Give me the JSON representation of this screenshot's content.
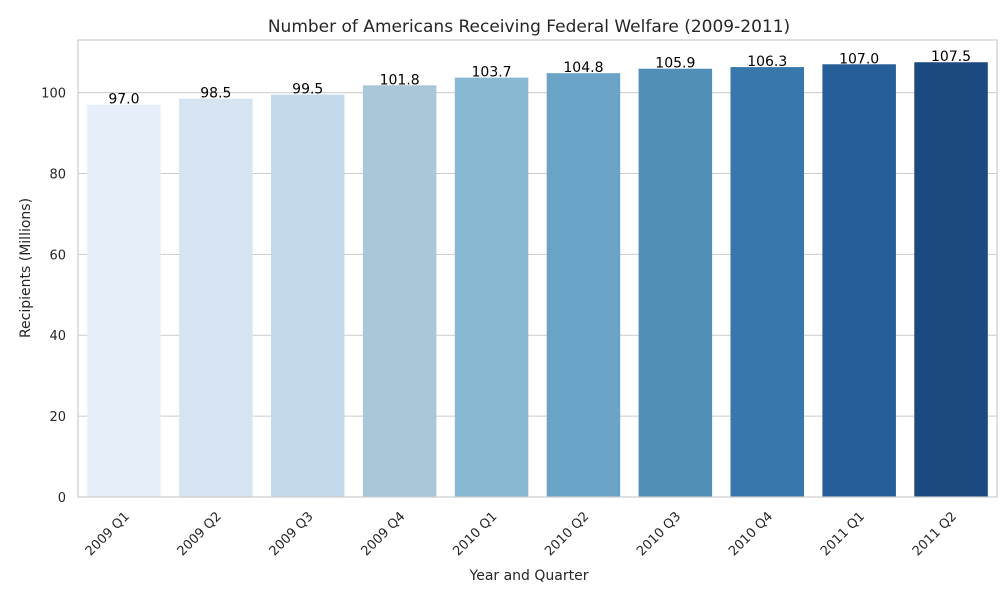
{
  "chart_data": {
    "type": "bar",
    "title": "Number of Americans Receiving Federal Welfare (2009-2011)",
    "xlabel": "Year and Quarter",
    "ylabel": "Recipients (Millions)",
    "categories": [
      "2009 Q1",
      "2009 Q2",
      "2009 Q3",
      "2009 Q4",
      "2010 Q1",
      "2010 Q2",
      "2010 Q3",
      "2010 Q4",
      "2011 Q1",
      "2011 Q2"
    ],
    "values": [
      97.0,
      98.5,
      99.5,
      101.8,
      103.7,
      104.8,
      105.9,
      106.3,
      107.0,
      107.5
    ],
    "data_labels": [
      "97.0",
      "98.5",
      "99.5",
      "101.8",
      "103.7",
      "104.8",
      "105.9",
      "106.3",
      "107.0",
      "107.5"
    ],
    "ylim": [
      0,
      113
    ],
    "yticks": [
      0,
      20,
      40,
      60,
      80,
      100
    ],
    "grid": true,
    "palette": "Blues (light to dark)",
    "colors": [
      "#e6eff9",
      "#d6e4f1",
      "#c4d9ea",
      "#a8c8da",
      "#89b8d2",
      "#6ba3c6",
      "#528fb7",
      "#3777ab",
      "#265f98",
      "#1a4a80"
    ]
  }
}
